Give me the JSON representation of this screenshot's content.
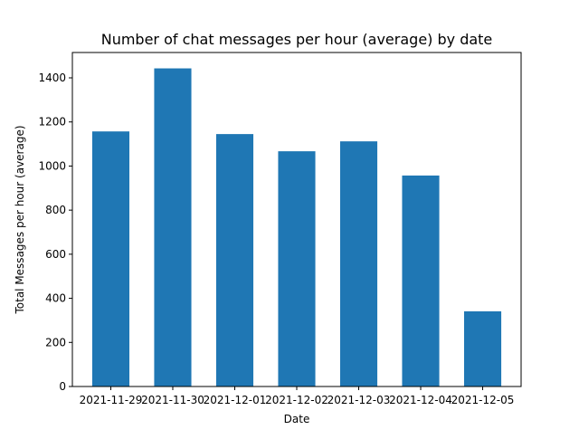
{
  "chart_data": {
    "type": "bar",
    "title": "Number of chat messages per hour (average) by date",
    "xlabel": "Date",
    "ylabel": "Total Messages per hour (average)",
    "categories": [
      "2021-11-29",
      "2021-11-30",
      "2021-12-01",
      "2021-12-02",
      "2021-12-03",
      "2021-12-04",
      "2021-12-05"
    ],
    "values": [
      1157,
      1443,
      1145,
      1067,
      1112,
      957,
      341
    ],
    "ylim": [
      0,
      1515
    ],
    "yticks": [
      0,
      200,
      400,
      600,
      800,
      1000,
      1200,
      1400
    ],
    "grid": false,
    "legend": "none",
    "bar_color": "#1f77b4"
  }
}
